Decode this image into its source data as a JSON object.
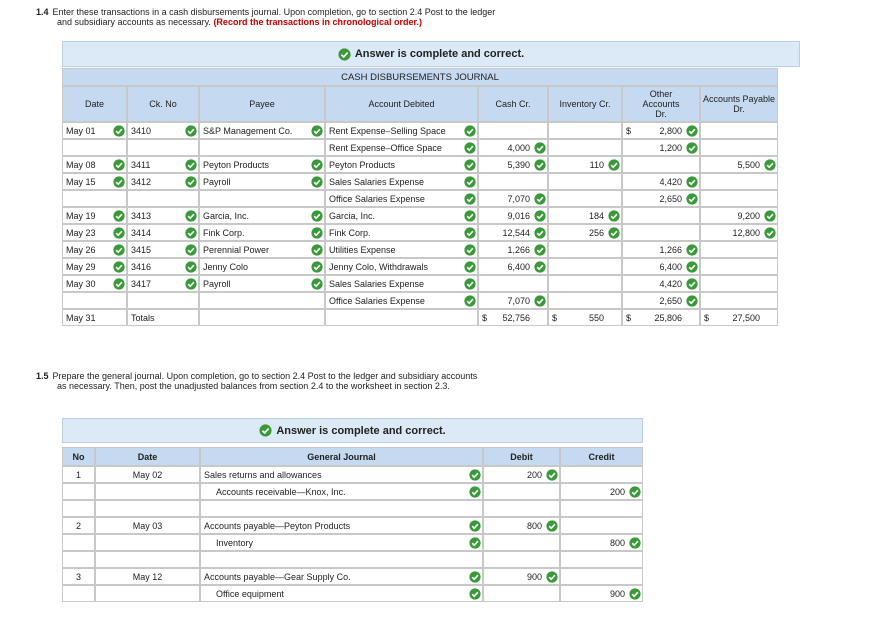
{
  "section_1_4": {
    "number": "1.4",
    "instruction": "Enter these transactions in a cash disbursements journal. Upon completion, go to section 2.4 Post to the ledger and subsidiary accounts as necessary.",
    "note": "(Record the transactions in chronological order.)",
    "status": "Answer is complete and correct.",
    "journal": {
      "title": "CASH DISBURSEMENTS JOURNAL",
      "columns": [
        "Date",
        "Ck. No",
        "Payee",
        "Account Debited",
        "Cash Cr.",
        "Inventory Cr.",
        "Other Accounts Dr.",
        "Accounts Payable Dr."
      ],
      "rows": [
        [
          "May 01",
          "3410",
          "S&P Management Co.",
          "Rent Expense–Selling Space",
          null,
          null,
          {
            "sign": "$",
            "amount": "2,800"
          },
          null
        ],
        [
          null,
          null,
          null,
          "Rent Expense–Office Space",
          "4,000",
          null,
          "1,200",
          null
        ],
        [
          "May 08",
          "3411",
          "Peyton Products",
          "Peyton Products",
          "5,390",
          "110",
          null,
          "5,500"
        ],
        [
          "May 15",
          "3412",
          "Payroll",
          "Sales Salaries Expense",
          null,
          null,
          "4,420",
          null
        ],
        [
          null,
          null,
          null,
          "Office Salaries Expense",
          "7,070",
          null,
          "2,650",
          null
        ],
        [
          "May 19",
          "3413",
          "Garcia, Inc.",
          "Garcia, Inc.",
          "9,016",
          "184",
          null,
          "9,200"
        ],
        [
          "May 23",
          "3414",
          "Fink Corp.",
          "Fink Corp.",
          "12,544",
          "256",
          null,
          "12,800"
        ],
        [
          "May 26",
          "3415",
          "Perennial Power",
          "Utilities Expense",
          "1,266",
          null,
          "1,266",
          null
        ],
        [
          "May 29",
          "3416",
          "Jenny Colo",
          "Jenny Colo, Withdrawals",
          "6,400",
          null,
          "6,400",
          null
        ],
        [
          "May 30",
          "3417",
          "Payroll",
          "Sales Salaries Expense",
          null,
          null,
          "4,420",
          null
        ],
        [
          null,
          null,
          null,
          "Office Salaries Expense",
          "7,070",
          null,
          "2,650",
          null
        ]
      ],
      "totals": [
        "May 31",
        "Totals",
        null,
        null,
        {
          "sign": "$",
          "amount": "52,756"
        },
        {
          "sign": "$",
          "amount": "550"
        },
        {
          "sign": "$",
          "amount": "25,806"
        },
        {
          "sign": "$",
          "amount": "27,500"
        }
      ]
    }
  },
  "section_1_5": {
    "number": "1.5",
    "instruction": "Prepare the general journal. Upon completion, go to section 2.4 Post to the ledger and subsidiary accounts as necessary. Then, post the unadjusted balances from section 2.4 to the worksheet in section 2.3.",
    "status": "Answer is complete and correct.",
    "journal": {
      "columns": [
        "No",
        "Date",
        "General Journal",
        "Debit",
        "Credit"
      ],
      "entries": [
        {
          "no": "1",
          "date": "May 02",
          "lines": [
            {
              "account": "Sales returns and allowances",
              "debit": "200",
              "credit": null
            },
            {
              "account": "Accounts receivable—Knox, Inc.",
              "debit": null,
              "credit": "200"
            }
          ]
        },
        {
          "no": "2",
          "date": "May 03",
          "lines": [
            {
              "account": "Accounts payable—Peyton Products",
              "debit": "800",
              "credit": null
            },
            {
              "account": "Inventory",
              "debit": null,
              "credit": "800"
            }
          ]
        },
        {
          "no": "3",
          "date": "May 12",
          "lines": [
            {
              "account": "Accounts payable—Gear Supply Co.",
              "debit": "900",
              "credit": null
            },
            {
              "account": "Office equipment",
              "debit": null,
              "credit": "900"
            }
          ]
        }
      ]
    }
  }
}
